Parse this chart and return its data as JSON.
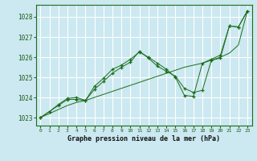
{
  "title": "Graphe pression niveau de la mer (hPa)",
  "bg_color": "#cce8f0",
  "grid_color": "#ffffff",
  "line_color": "#1a6e1a",
  "xlim": [
    -0.5,
    23.5
  ],
  "ylim": [
    1022.6,
    1028.6
  ],
  "yticks": [
    1023,
    1024,
    1025,
    1026,
    1027,
    1028
  ],
  "xticks": [
    0,
    1,
    2,
    3,
    4,
    5,
    6,
    7,
    8,
    9,
    10,
    11,
    12,
    13,
    14,
    15,
    16,
    17,
    18,
    19,
    20,
    21,
    22,
    23
  ],
  "series": [
    {
      "x": [
        0,
        1,
        2,
        3,
        4,
        5,
        6,
        7,
        8,
        9,
        10,
        11,
        12,
        13,
        14,
        15,
        16,
        17,
        18,
        19,
        20,
        21,
        22,
        23
      ],
      "y": [
        1023.0,
        1023.2,
        1023.4,
        1023.6,
        1023.75,
        1023.85,
        1024.0,
        1024.15,
        1024.3,
        1024.45,
        1024.6,
        1024.75,
        1024.9,
        1025.05,
        1025.2,
        1025.35,
        1025.5,
        1025.6,
        1025.7,
        1025.85,
        1026.0,
        1026.2,
        1026.6,
        1028.3
      ],
      "marker": false
    },
    {
      "x": [
        0,
        1,
        2,
        3,
        4,
        5,
        6,
        7,
        8,
        9,
        10,
        11,
        12,
        13,
        14,
        15,
        16,
        17,
        18,
        19,
        20,
        21,
        22,
        23
      ],
      "y": [
        1023.0,
        1023.3,
        1023.6,
        1023.9,
        1023.9,
        1023.85,
        1024.4,
        1024.8,
        1025.2,
        1025.5,
        1025.75,
        1026.3,
        1025.95,
        1025.55,
        1025.3,
        1025.05,
        1024.45,
        1024.25,
        1024.35,
        1025.85,
        1025.95,
        1027.55,
        1027.5,
        1028.3
      ],
      "marker": true
    },
    {
      "x": [
        0,
        1,
        2,
        3,
        4,
        5,
        6,
        7,
        8,
        9,
        10,
        11,
        12,
        13,
        14,
        15,
        16,
        17,
        18,
        19,
        20,
        21,
        22,
        23
      ],
      "y": [
        1023.0,
        1023.3,
        1023.65,
        1023.95,
        1024.0,
        1023.85,
        1024.55,
        1024.95,
        1025.4,
        1025.6,
        1025.9,
        1026.25,
        1026.0,
        1025.7,
        1025.4,
        1025.0,
        1024.1,
        1024.05,
        1025.7,
        1025.9,
        1026.1,
        1027.55,
        1027.5,
        1028.3
      ],
      "marker": true
    }
  ]
}
